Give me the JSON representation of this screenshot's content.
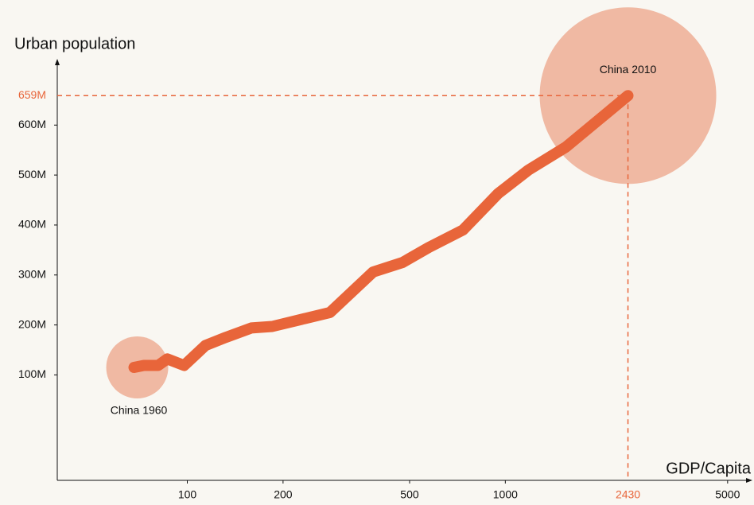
{
  "chart_data": {
    "type": "line",
    "x_label": "GDP/Capita",
    "y_label": "Urban population",
    "labels": {
      "start": "China 1960",
      "end": "China 2010"
    },
    "x": [
      68,
      73,
      81,
      86.5,
      97.7,
      114,
      132,
      159,
      185,
      235,
      281,
      384,
      475,
      574,
      736,
      949,
      1182,
      1550,
      2430
    ],
    "series": [
      {
        "name": "China",
        "color": "#e8653a",
        "values": [
          115000000,
          119000000,
          119000000,
          132000000,
          119000000,
          159000000,
          175000000,
          194000000,
          197000000,
          213000000,
          225000000,
          306000000,
          325000000,
          355000000,
          390000000,
          463000000,
          510000000,
          556000000,
          659000000
        ]
      }
    ],
    "bubble_color": "#f0b9a3",
    "xscale": "log",
    "xlim": [
      39,
      5780
    ],
    "ylim": [
      -111000000,
      723000000
    ],
    "xticks": [
      100,
      200,
      500,
      1000,
      5000
    ],
    "yticks": [
      {
        "value": 100000000,
        "label": "100M"
      },
      {
        "value": 200000000,
        "label": "200M"
      },
      {
        "value": 300000000,
        "label": "300M"
      },
      {
        "value": 400000000,
        "label": "400M"
      },
      {
        "value": 500000000,
        "label": "500M"
      },
      {
        "value": 600000000,
        "label": "600M"
      }
    ],
    "highlight": {
      "x": 2430,
      "y": {
        "value": 659000000,
        "label": "659M"
      },
      "color": "#e8653a"
    }
  }
}
